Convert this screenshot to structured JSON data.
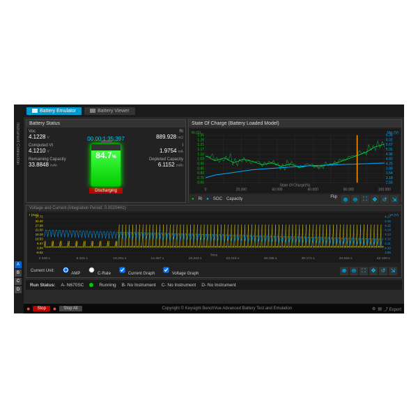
{
  "tabs": {
    "emulator": "Battery Emulator",
    "viewer": "Battery Viewer"
  },
  "left_sidebar": {
    "tab1": "Instrument Connection",
    "tab2": "Instrument Control"
  },
  "battery_status": {
    "title": "Battery Status",
    "timer": "00.00:1:35:397",
    "voc": {
      "label": "Voc",
      "value": "4.1228",
      "unit": "V"
    },
    "computed_vt": {
      "label": "Computed Vt",
      "value": "4.1210",
      "unit": "V"
    },
    "remaining": {
      "label": "Remaining Capacity",
      "value": "33.8848",
      "unit": "mAh"
    },
    "ri": {
      "label": "Ri",
      "value": "889.928",
      "unit": "mΩ"
    },
    "i": {
      "label": "I",
      "value": "1.9754",
      "unit": "mA"
    },
    "depleted": {
      "label": "Depleted Capacity",
      "value": "6.1152",
      "unit": "mAh"
    },
    "percent": "84.7",
    "percent_unit": "%",
    "status_btn": "Discharging",
    "battery_color": "#00cc00"
  },
  "soc_chart": {
    "title": "State Of Charge (Battery Loaded Model)",
    "left_axis_label": "Ri (Ω)",
    "right_axis_label": "Voc (V)",
    "x_axis_label": "State Of Charge(%)",
    "left_ticks": [
      "1.35",
      "1.28",
      "1.21",
      "1.17",
      "1.10",
      "1.03",
      "0.96",
      "0.90",
      "0.83",
      "0.76",
      "0.66"
    ],
    "right_ticks": [
      "6.38",
      "6.02",
      "5.67",
      "5.31",
      "4.96",
      "4.60",
      "4.25",
      "3.89",
      "3.54",
      "3.18",
      "2.83"
    ],
    "x_ticks": [
      "0",
      "10.000",
      "20.000",
      "30.000",
      "40.000",
      "50.000",
      "60.000",
      "70.000",
      "80.000",
      "90.000",
      "100.000"
    ],
    "legend": {
      "ri": "Ri",
      "soc": "SOC",
      "capacity": "Capacity"
    },
    "flip_label": "Flip",
    "ri_color": "#00dd44",
    "voc_color": "#00aaff",
    "marker_color": "#ff9900",
    "bg": "#1a1a1a",
    "grid": "#333333",
    "ri_data": [
      1.05,
      0.98,
      1.02,
      0.95,
      1.0,
      0.97,
      0.92,
      0.95,
      0.9,
      0.93,
      0.88,
      0.91,
      0.89,
      0.92,
      0.95,
      1.0,
      1.05,
      1.1,
      1.18,
      1.22
    ],
    "voc_data": [
      3.2,
      3.4,
      3.5,
      3.6,
      3.7,
      3.8,
      3.85,
      3.9,
      3.95,
      4.0,
      4.05,
      4.1,
      4.12,
      4.15,
      4.18,
      4.2,
      4.22,
      4.25,
      4.28,
      4.3
    ],
    "marker_x": 84.7
  },
  "vi_chart": {
    "title_prefix": "Voltage and Current (Integration Period: ",
    "integration_period": "0.00204Hz",
    "title_suffix": ")",
    "left_axis_label": "I (mA)",
    "right_axis_label": "Vt (V)",
    "x_axis_label": "Time",
    "left_ticks": [
      "37.72",
      "32.40",
      "27.08",
      "21.50",
      "16.18",
      "10.53",
      "5.37",
      "0.04",
      "-6.02"
    ],
    "right_ticks": [
      "4.17",
      "4.16",
      "4.15",
      "4.14",
      "4.13",
      "4.12",
      "4.11",
      "4.10",
      "4.09"
    ],
    "x_ticks": [
      "2.339 s",
      "6.315 s",
      "10.291 s",
      "14.267 s",
      "18.243 s",
      "22.219 s",
      "26.195 s",
      "30.171 s",
      "34.024 s",
      "42.100 s"
    ],
    "current_color": "#eedd00",
    "voltage_color": "#00aaff",
    "bg": "#1a1a1a",
    "grid": "#333333"
  },
  "vi_footer": {
    "current_unit_label": "Current Unit:",
    "amp": "AMP",
    "crate": "C-Rate",
    "cg_label": "Current Graph",
    "vg_label": "Voltage Graph"
  },
  "run_status": {
    "label": "Run Status:",
    "a": "A- N670SC",
    "running": "Running",
    "b": "B- No Instrument",
    "c": "C- No Instrument",
    "d": "D- No Instrument"
  },
  "bottom": {
    "stop": "Stop",
    "stop_all": "Stop All",
    "copyright": "Copyright © Keysight BenchVue Advanced Battery Test and Emulation",
    "export": "Export"
  },
  "markers": {
    "a": "A",
    "b": "B",
    "c": "C",
    "d": "D"
  },
  "colors": {
    "accent": "#0099cc",
    "red": "#bb0000",
    "green": "#00cc00",
    "dark": "#1a1a1a"
  }
}
